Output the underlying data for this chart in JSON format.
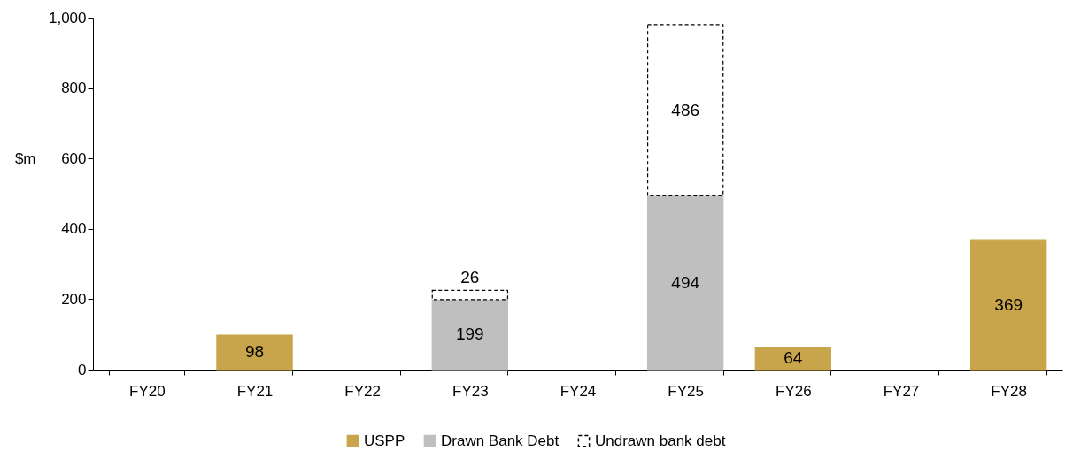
{
  "chart_data": {
    "type": "bar",
    "stacked": true,
    "ylabel": "$m",
    "categories": [
      "FY20",
      "FY21",
      "FY22",
      "FY23",
      "FY24",
      "FY25",
      "FY26",
      "FY27",
      "FY28"
    ],
    "series": [
      {
        "name": "USPP",
        "color": "#c8a44a",
        "values": [
          null,
          98,
          null,
          null,
          null,
          null,
          64,
          null,
          369
        ]
      },
      {
        "name": "Drawn Bank Debt",
        "color": "#bfbfbf",
        "values": [
          null,
          null,
          null,
          199,
          null,
          494,
          null,
          null,
          null
        ]
      },
      {
        "name": "Undrawn bank debt",
        "color": "#ffffff",
        "line_style": "dashed",
        "values": [
          null,
          null,
          null,
          26,
          null,
          486,
          null,
          null,
          null
        ]
      }
    ],
    "ylim": [
      0,
      1000
    ],
    "yticks": [
      0,
      200,
      400,
      600,
      800,
      {
        "value": 1000,
        "label": "1,000"
      }
    ],
    "data_labels": true,
    "legend": "bottom",
    "grid": false
  }
}
